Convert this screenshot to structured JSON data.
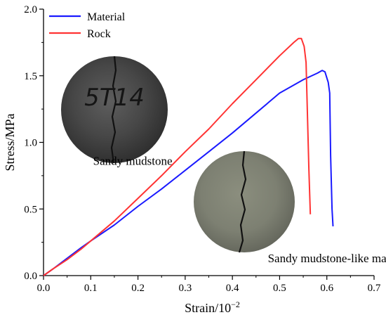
{
  "chart_data": {
    "type": "line",
    "title": "",
    "xlabel": "Strain/10",
    "xlabel_superscript": "−2",
    "ylabel": "Stress/MPa",
    "xlim": [
      0,
      0.7
    ],
    "ylim": [
      0,
      2.0
    ],
    "xticks": [
      "0.0",
      "0.1",
      "0.2",
      "0.3",
      "0.4",
      "0.5",
      "0.6",
      "0.7"
    ],
    "yticks": [
      "0.0",
      "0.5",
      "1.0",
      "1.5",
      "2.0"
    ],
    "grid": false,
    "legend_position": "top-left",
    "series": [
      {
        "name": "Material",
        "color": "#1a1aff",
        "points": [
          [
            0.0,
            0.0
          ],
          [
            0.02,
            0.05
          ],
          [
            0.05,
            0.13
          ],
          [
            0.08,
            0.21
          ],
          [
            0.1,
            0.26
          ],
          [
            0.15,
            0.38
          ],
          [
            0.2,
            0.52
          ],
          [
            0.25,
            0.65
          ],
          [
            0.3,
            0.79
          ],
          [
            0.35,
            0.93
          ],
          [
            0.4,
            1.07
          ],
          [
            0.45,
            1.22
          ],
          [
            0.5,
            1.37
          ],
          [
            0.55,
            1.47
          ],
          [
            0.58,
            1.52
          ],
          [
            0.59,
            1.54
          ],
          [
            0.596,
            1.53
          ],
          [
            0.603,
            1.45
          ],
          [
            0.606,
            1.37
          ],
          [
            0.608,
            0.9
          ],
          [
            0.611,
            0.5
          ],
          [
            0.613,
            0.37
          ]
        ]
      },
      {
        "name": "Rock",
        "color": "#ff3333",
        "points": [
          [
            0.0,
            0.0
          ],
          [
            0.02,
            0.05
          ],
          [
            0.05,
            0.12
          ],
          [
            0.08,
            0.2
          ],
          [
            0.1,
            0.26
          ],
          [
            0.15,
            0.41
          ],
          [
            0.2,
            0.58
          ],
          [
            0.25,
            0.75
          ],
          [
            0.3,
            0.93
          ],
          [
            0.35,
            1.1
          ],
          [
            0.4,
            1.29
          ],
          [
            0.45,
            1.47
          ],
          [
            0.5,
            1.65
          ],
          [
            0.53,
            1.75
          ],
          [
            0.54,
            1.78
          ],
          [
            0.546,
            1.78
          ],
          [
            0.552,
            1.72
          ],
          [
            0.556,
            1.6
          ],
          [
            0.559,
            1.2
          ],
          [
            0.562,
            0.8
          ],
          [
            0.565,
            0.46
          ]
        ]
      }
    ],
    "annotations": [
      {
        "text": "Sandy mudstone",
        "x": 0.105,
        "y": 0.83
      },
      {
        "text": "Sandy mudstone-like material",
        "x": 0.475,
        "y": 0.1
      }
    ],
    "photo_specimen_mark": "5T14"
  }
}
